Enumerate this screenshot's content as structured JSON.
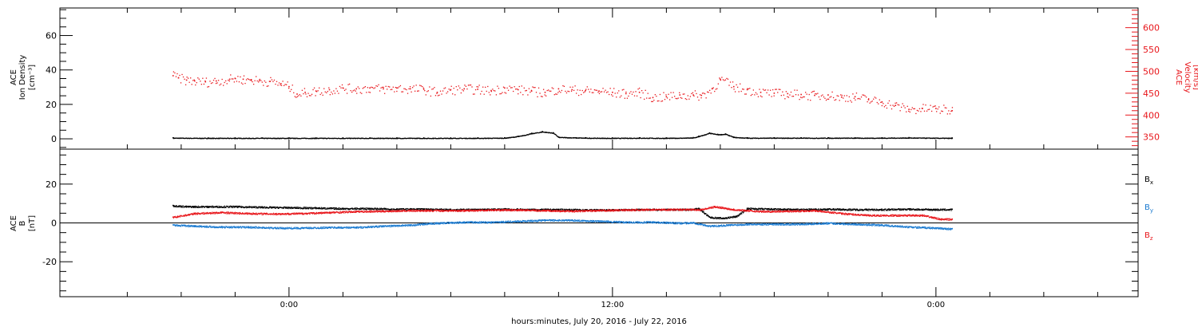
{
  "chart_data": [
    {
      "type": "scatter",
      "panel": "top",
      "ylabel_left": [
        "ACE",
        "Ion Density",
        "[cm⁻³]"
      ],
      "ylabel_right": [
        "ACE",
        "Velocity",
        "[km/s]"
      ],
      "y_left_range": [
        -6,
        76
      ],
      "y_left_ticks": [
        0,
        20,
        40,
        60
      ],
      "y_right_range": [
        322,
        645
      ],
      "y_right_ticks": [
        350,
        400,
        450,
        500,
        550,
        600
      ],
      "series": [
        {
          "axis": "left",
          "color": "#000000",
          "x": [
            -4.3,
            -3,
            -2,
            -1,
            0,
            1,
            2,
            3,
            4,
            5,
            6,
            7,
            8,
            8.5,
            9,
            9.4,
            9.8,
            10,
            11,
            12,
            13,
            14,
            15,
            15.2,
            15.6,
            15.9,
            16.2,
            16.5,
            17,
            18,
            19,
            20,
            21,
            22,
            23,
            24.6
          ],
          "y": [
            0.6,
            0.5,
            0.5,
            0.5,
            0.5,
            0.5,
            0.5,
            0.5,
            0.5,
            0.5,
            0.5,
            0.5,
            0.6,
            1.5,
            3.2,
            4.2,
            3.5,
            1.0,
            0.6,
            0.5,
            0.6,
            0.5,
            0.7,
            1.5,
            3.4,
            2.6,
            2.8,
            1.0,
            0.6,
            0.6,
            0.6,
            0.6,
            0.6,
            0.6,
            0.7,
            0.5
          ]
        },
        {
          "axis": "right",
          "color": "#e8161b",
          "x": [
            -4.3,
            -4.1,
            -3.8,
            -3.5,
            -3.1,
            -2.7,
            -2.2,
            -2,
            -1.7,
            -1.4,
            -1.1,
            -0.7,
            -0.3,
            0,
            0.3,
            0.6,
            1.0,
            1.5,
            2,
            2.5,
            3,
            3.5,
            4,
            4.5,
            5,
            5.5,
            6,
            6.5,
            7,
            7.5,
            8,
            8.5,
            9,
            9.5,
            10,
            10.5,
            11,
            11.5,
            12,
            12.5,
            13,
            13.5,
            14,
            14.5,
            15,
            15.3,
            15.7,
            16,
            16.5,
            17,
            17.5,
            18,
            18.5,
            19,
            19.5,
            20,
            20.5,
            21,
            21.5,
            22,
            22.5,
            23,
            23.5,
            24,
            24.6
          ],
          "y": [
            490,
            485,
            480,
            478,
            476,
            478,
            482,
            484,
            482,
            481,
            479,
            477,
            472,
            465,
            448,
            452,
            455,
            458,
            462,
            460,
            462,
            460,
            462,
            460,
            459,
            452,
            458,
            460,
            459,
            456,
            462,
            458,
            455,
            452,
            460,
            458,
            456,
            455,
            452,
            449,
            452,
            440,
            442,
            446,
            446,
            445,
            460,
            482,
            465,
            458,
            452,
            450,
            449,
            447,
            445,
            446,
            441,
            442,
            435,
            430,
            422,
            413,
            415,
            415,
            410
          ]
        }
      ]
    },
    {
      "type": "scatter",
      "panel": "bottom",
      "ylabel_left": [
        "ACE",
        "B",
        "[nT]"
      ],
      "y_left_range": [
        -38,
        38
      ],
      "y_left_ticks": [
        -20,
        0,
        20
      ],
      "legend_position": "right",
      "series": [
        {
          "name_base": "B",
          "name_sub": "x",
          "color": "#000000",
          "x": [
            -4.3,
            -3.8,
            -3,
            -2,
            -1,
            0,
            1,
            2,
            3,
            4,
            5,
            6,
            7,
            8,
            9,
            10,
            11,
            12,
            13,
            14,
            14.8,
            15.2,
            15.6,
            16.1,
            16.6,
            17,
            18,
            19,
            20,
            21,
            22,
            23,
            24,
            24.6
          ],
          "y": [
            9,
            8.5,
            8.5,
            8.5,
            8.2,
            8,
            7.8,
            7.5,
            7.5,
            7.2,
            7.2,
            7,
            7,
            7.2,
            7,
            7,
            6.8,
            6.8,
            7,
            7,
            7,
            7.5,
            3,
            2.5,
            3.5,
            7.5,
            7.2,
            7,
            7.2,
            7,
            7,
            7.2,
            7,
            7
          ]
        },
        {
          "name_base": "B",
          "name_sub": "y",
          "color": "#1a7ad0",
          "x": [
            -4.3,
            -3.5,
            -2.5,
            -1.5,
            -0.5,
            0.5,
            1.5,
            2.5,
            3.5,
            4.5,
            5.5,
            6.5,
            7.5,
            8.5,
            9.5,
            10.5,
            11.5,
            12.5,
            13.5,
            14.5,
            15,
            15.6,
            16.3,
            17,
            18,
            19,
            20,
            21,
            22,
            23,
            24,
            24.6
          ],
          "y": [
            -1,
            -1.5,
            -2,
            -2,
            -2.5,
            -2.5,
            -2.2,
            -2.2,
            -1.5,
            -1,
            0,
            0.5,
            0.5,
            1,
            1.5,
            1.5,
            1,
            0.5,
            0.5,
            0,
            0.2,
            -1.5,
            -1,
            -0.5,
            -0.5,
            -0.5,
            0,
            -0.5,
            -1,
            -2,
            -2.5,
            -3
          ]
        },
        {
          "name_base": "B",
          "name_sub": "z",
          "color": "#e8161b",
          "x": [
            -4.3,
            -3.5,
            -2.5,
            -1.5,
            -0.5,
            0.5,
            1.5,
            2.5,
            3.5,
            4.5,
            5.5,
            6.5,
            7.5,
            8.5,
            9.5,
            10.5,
            11.5,
            12.5,
            13.5,
            14.5,
            15.3,
            15.8,
            16.5,
            17.5,
            18.5,
            19.5,
            20.5,
            21.5,
            22.5,
            23.5,
            24.2,
            24.6
          ],
          "y": [
            3,
            5,
            5.5,
            5,
            4.8,
            5,
            5.5,
            6,
            6.2,
            6.5,
            6.5,
            6.5,
            6.8,
            6.8,
            6.5,
            6.2,
            6.5,
            6.8,
            7,
            7,
            7,
            8.5,
            7,
            6,
            6.2,
            6.5,
            5,
            4,
            4,
            4,
            2,
            2
          ]
        }
      ]
    }
  ],
  "x_axis": {
    "range": [
      -8.5,
      31.5
    ],
    "major_ticks": [
      0,
      12,
      24
    ],
    "labels": [
      "0:00",
      "12:00",
      "0:00"
    ],
    "title": "hours:minutes, July 20, 2016 - July 22, 2016"
  },
  "colors": {
    "density": "#000000",
    "velocity": "#e8161b",
    "bx": "#000000",
    "by": "#1a7ad0",
    "bz": "#e8161b"
  }
}
